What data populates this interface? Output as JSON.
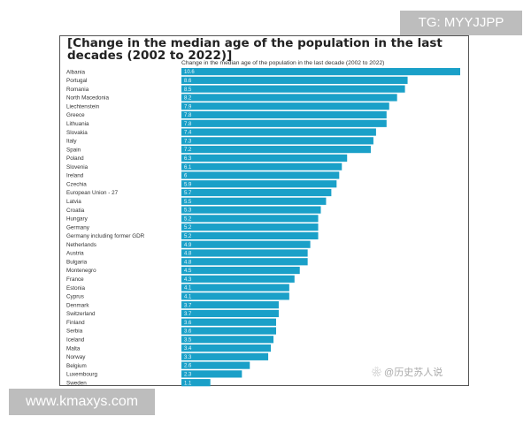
{
  "overlay": {
    "tg": "TG: MYYJJPP",
    "site": "www.kmaxys.com",
    "watermark": "❀ @历史苏人说"
  },
  "chart_data": {
    "type": "bar",
    "orientation": "horizontal",
    "title": "[Change in the median age of the population in the last decades (2002 to 2022)]",
    "series_label": "Change in the median age of the population in the last decade (2002 to 2022)",
    "bar_color": "#1aa0c8",
    "xlim": [
      0,
      10.6
    ],
    "categories": [
      "Albania",
      "Portugal",
      "Romania",
      "North Macedonia",
      "Liechtenstein",
      "Greece",
      "Lithuania",
      "Slovakia",
      "Italy",
      "Spain",
      "Poland",
      "Slovenia",
      "Ireland",
      "Czechia",
      "European Union - 27",
      "Latvia",
      "Croatia",
      "Hungary",
      "Germany",
      "Germany including former GDR",
      "Netherlands",
      "Austria",
      "Bulgaria",
      "Montenegro",
      "France",
      "Estonia",
      "Cyprus",
      "Denmark",
      "Switzerland",
      "Finland",
      "Serbia",
      "Iceland",
      "Malta",
      "Norway",
      "Belgium",
      "Luxembourg",
      "Sweden"
    ],
    "values": [
      10.6,
      8.6,
      8.5,
      8.2,
      7.9,
      7.8,
      7.8,
      7.4,
      7.3,
      7.2,
      6.3,
      6.1,
      6,
      5.9,
      5.7,
      5.5,
      5.3,
      5.2,
      5.2,
      5.2,
      4.9,
      4.8,
      4.8,
      4.5,
      4.3,
      4.1,
      4.1,
      3.7,
      3.7,
      3.6,
      3.6,
      3.5,
      3.4,
      3.3,
      2.6,
      2.3,
      1.1
    ]
  }
}
